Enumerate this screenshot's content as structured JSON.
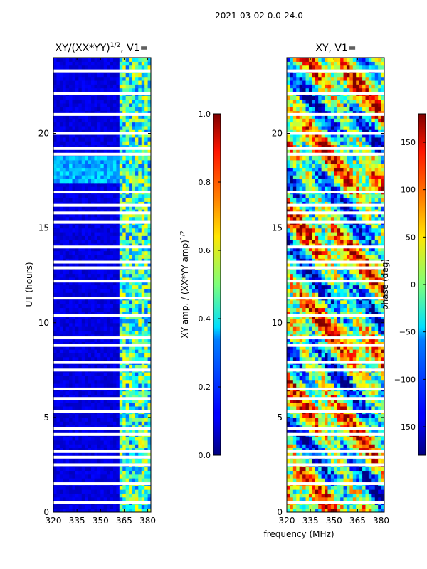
{
  "suptitle": "2021-03-02 0.0-24.0",
  "xlabel": "frequency (MHz)",
  "chart_data": [
    {
      "type": "heatmap",
      "title_main": "XY/(XX*YY)",
      "title_sup": "1/2",
      "title_tail": ", V1=",
      "ylabel": "UT (hours)",
      "xlim": [
        320,
        382
      ],
      "ylim": [
        0,
        24
      ],
      "xticks": [
        320,
        335,
        350,
        365,
        380
      ],
      "yticks": [
        0,
        5,
        10,
        15,
        20
      ],
      "colorbar": {
        "label_main": "XY amp. / (XX*YY amp)",
        "label_sup": "1/2",
        "range": [
          0.0,
          1.0
        ],
        "ticks": [
          "0.0",
          "0.2",
          "0.4",
          "0.6",
          "0.8",
          "1.0"
        ],
        "tick_values": [
          0.0,
          0.2,
          0.4,
          0.6,
          0.8,
          1.0
        ]
      },
      "bright_band_mhz": [
        362,
        381
      ],
      "cyan_band_hours": [
        17.3,
        18.7
      ],
      "gap_hours": [
        0.5,
        1.5,
        2.5,
        2.9,
        3.2,
        4.1,
        4.4,
        5.3,
        6.0,
        6.5,
        7.5,
        7.9,
        8.8,
        9.2,
        10.4,
        11.3,
        12.2,
        12.9,
        13.2,
        14.0,
        15.3,
        15.8,
        16.2,
        16.9,
        18.9,
        19.2,
        20.0,
        21.0,
        22.1,
        23.3
      ]
    },
    {
      "type": "heatmap",
      "title": "XY, V1=",
      "xlim": [
        320,
        382
      ],
      "ylim": [
        0,
        24
      ],
      "xticks": [
        320,
        335,
        350,
        365,
        380
      ],
      "yticks": [
        0,
        5,
        10,
        15,
        20
      ],
      "colorbar": {
        "label": "phase (deg)",
        "range": [
          -180,
          180
        ],
        "ticks": [
          "−150",
          "−100",
          "−50",
          "0",
          "50",
          "100",
          "150"
        ],
        "tick_values": [
          -150,
          -100,
          -50,
          0,
          50,
          100,
          150
        ]
      },
      "gap_hours": [
        0.5,
        1.5,
        2.5,
        2.9,
        3.2,
        4.1,
        4.4,
        5.3,
        6.0,
        6.5,
        7.5,
        7.9,
        8.8,
        9.2,
        10.4,
        11.3,
        12.2,
        12.9,
        13.2,
        14.0,
        15.3,
        15.8,
        16.2,
        16.9,
        18.9,
        19.2,
        20.0,
        21.0,
        22.1,
        23.3
      ]
    }
  ]
}
